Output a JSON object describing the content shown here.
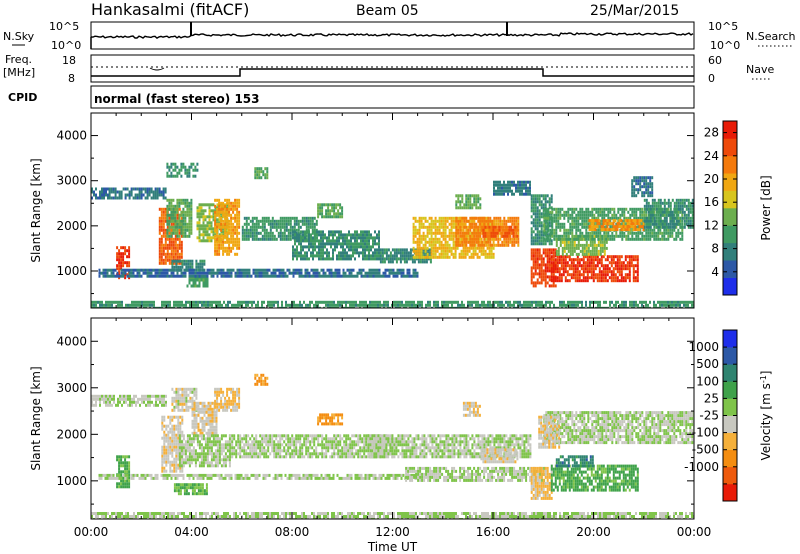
{
  "header": {
    "station": "Hankasalmi (fitACF)",
    "beam": "Beam 05",
    "date": "25/Mar/2015"
  },
  "nsky_panel": {
    "left_label": "N.Sky",
    "right_label": "N.Search",
    "left_ticks": [
      "10^5",
      "10^0"
    ],
    "right_ticks": [
      "10^5",
      "10^0"
    ]
  },
  "freq_panel": {
    "left_label_1": "Freq.",
    "left_label_2": "[MHz]",
    "left_ticks": [
      "18",
      "8"
    ],
    "right_label": "Nave",
    "right_ticks": [
      "60",
      "0"
    ]
  },
  "cpid": {
    "label": "CPID",
    "value": "normal (fast stereo) 153"
  },
  "chart_data": [
    {
      "type": "heatmap",
      "panel": "power",
      "xlabel": "Time UT",
      "ylabel": "Slant Range [km]",
      "xlim": [
        0,
        24
      ],
      "ylim": [
        180,
        4500
      ],
      "x_ticks": [
        "00:00",
        "04:00",
        "08:00",
        "12:00",
        "16:00",
        "20:00",
        "00:00"
      ],
      "y_ticks": [
        1000,
        2000,
        3000,
        4000
      ],
      "colorbar": {
        "label": "Power [dB]",
        "ticks": [
          4,
          8,
          12,
          16,
          20,
          24,
          28
        ],
        "range": [
          0,
          30
        ],
        "colors": [
          "#1e2eea",
          "#2c58a6",
          "#317f7b",
          "#3f9a62",
          "#6cae4e",
          "#d8c51e",
          "#f0a712",
          "#f47a0c",
          "#ee4a0a",
          "#e81b07"
        ]
      },
      "regions": [
        {
          "x0": 0.0,
          "x1": 0.7,
          "y0": 2600,
          "y1": 2850,
          "level": 6
        },
        {
          "x0": 0.7,
          "x1": 3.0,
          "y0": 2650,
          "y1": 2850,
          "level": 7
        },
        {
          "x0": 1.0,
          "x1": 1.5,
          "y0": 850,
          "y1": 1550,
          "level": 27
        },
        {
          "x0": 2.7,
          "x1": 3.6,
          "y0": 1200,
          "y1": 2400,
          "level": 24
        },
        {
          "x0": 3.0,
          "x1": 4.0,
          "y0": 1800,
          "y1": 2600,
          "level": 12
        },
        {
          "x0": 3.0,
          "x1": 4.2,
          "y0": 3100,
          "y1": 3400,
          "level": 9
        },
        {
          "x0": 4.2,
          "x1": 5.4,
          "y0": 1700,
          "y1": 2500,
          "level": 14
        },
        {
          "x0": 4.9,
          "x1": 5.9,
          "y0": 1400,
          "y1": 2600,
          "level": 20
        },
        {
          "x0": 3.2,
          "x1": 4.5,
          "y0": 1050,
          "y1": 1250,
          "level": 8
        },
        {
          "x0": 3.8,
          "x1": 4.6,
          "y0": 700,
          "y1": 900,
          "level": 11
        },
        {
          "x0": 6.0,
          "x1": 9.0,
          "y0": 1700,
          "y1": 2200,
          "level": 10
        },
        {
          "x0": 6.5,
          "x1": 7.0,
          "y0": 3050,
          "y1": 3300,
          "level": 12
        },
        {
          "x0": 0.3,
          "x1": 13.0,
          "y0": 900,
          "y1": 1050,
          "level": 6
        },
        {
          "x0": 8.0,
          "x1": 11.5,
          "y0": 1300,
          "y1": 1900,
          "level": 9
        },
        {
          "x0": 9.0,
          "x1": 10.0,
          "y0": 2200,
          "y1": 2500,
          "level": 12
        },
        {
          "x0": 11.5,
          "x1": 13.5,
          "y0": 1200,
          "y1": 1500,
          "level": 8
        },
        {
          "x0": 12.8,
          "x1": 16.0,
          "y0": 1300,
          "y1": 2200,
          "level": 18
        },
        {
          "x0": 14.5,
          "x1": 17.0,
          "y0": 1600,
          "y1": 2200,
          "level": 22
        },
        {
          "x0": 15.5,
          "x1": 17.0,
          "y0": 1800,
          "y1": 2000,
          "level": 24
        },
        {
          "x0": 14.5,
          "x1": 15.5,
          "y0": 2400,
          "y1": 2700,
          "level": 13
        },
        {
          "x0": 16.0,
          "x1": 17.5,
          "y0": 2700,
          "y1": 3000,
          "level": 7
        },
        {
          "x0": 17.5,
          "x1": 18.3,
          "y0": 1600,
          "y1": 2700,
          "level": 9
        },
        {
          "x0": 17.5,
          "x1": 18.5,
          "y0": 650,
          "y1": 1500,
          "level": 26
        },
        {
          "x0": 18.3,
          "x1": 21.8,
          "y0": 800,
          "y1": 1350,
          "level": 27
        },
        {
          "x0": 18.5,
          "x1": 20.5,
          "y0": 1400,
          "y1": 1800,
          "level": 14
        },
        {
          "x0": 18.0,
          "x1": 23.5,
          "y0": 1700,
          "y1": 2400,
          "level": 11
        },
        {
          "x0": 19.8,
          "x1": 22.0,
          "y0": 1900,
          "y1": 2150,
          "level": 21
        },
        {
          "x0": 22.0,
          "x1": 24.0,
          "y0": 2000,
          "y1": 2600,
          "level": 9
        },
        {
          "x0": 21.5,
          "x1": 22.3,
          "y0": 2700,
          "y1": 3100,
          "level": 7
        },
        {
          "x0": 0.0,
          "x1": 24.0,
          "y0": 180,
          "y1": 340,
          "level": 10
        }
      ]
    },
    {
      "type": "heatmap",
      "panel": "velocity",
      "xlabel": "Time UT",
      "ylabel": "Slant Range [km]",
      "xlim": [
        0,
        24
      ],
      "ylim": [
        180,
        4500
      ],
      "x_ticks": [
        "00:00",
        "04:00",
        "08:00",
        "12:00",
        "16:00",
        "20:00",
        "00:00"
      ],
      "y_ticks": [
        1000,
        2000,
        3000,
        4000
      ],
      "colorbar": {
        "label": "Velocity [m s^-1]",
        "ticks": [
          1000,
          500,
          100,
          25,
          -25,
          -100,
          -500,
          -1000
        ],
        "range": [
          -1200,
          1200
        ],
        "colors": [
          "#e81b07",
          "#ee5a0c",
          "#f48d10",
          "#f5b03a",
          "#c8c8c0",
          "#7fc44a",
          "#3fa24a",
          "#2f8470",
          "#2c58a6",
          "#1e2eea"
        ]
      },
      "regions": [
        {
          "x0": 0.0,
          "x1": 3.0,
          "y0": 2600,
          "y1": 2850,
          "level": 0
        },
        {
          "x0": 1.0,
          "x1": 1.5,
          "y0": 850,
          "y1": 1550,
          "level": 300
        },
        {
          "x0": 2.8,
          "x1": 3.6,
          "y0": 1200,
          "y1": 2400,
          "level": -150
        },
        {
          "x0": 3.2,
          "x1": 4.2,
          "y0": 2500,
          "y1": 3000,
          "level": -120
        },
        {
          "x0": 4.0,
          "x1": 5.0,
          "y0": 2000,
          "y1": 2700,
          "level": -200
        },
        {
          "x0": 4.9,
          "x1": 5.9,
          "y0": 2500,
          "y1": 3000,
          "level": -300
        },
        {
          "x0": 3.3,
          "x1": 4.6,
          "y0": 700,
          "y1": 950,
          "level": 200
        },
        {
          "x0": 3.5,
          "x1": 5.5,
          "y0": 1300,
          "y1": 2000,
          "level": 0
        },
        {
          "x0": 6.5,
          "x1": 7.0,
          "y0": 3050,
          "y1": 3300,
          "level": -500
        },
        {
          "x0": 5.5,
          "x1": 12.0,
          "y0": 1500,
          "y1": 2000,
          "level": 0
        },
        {
          "x0": 9.0,
          "x1": 10.0,
          "y0": 2200,
          "y1": 2450,
          "level": -500
        },
        {
          "x0": 0.3,
          "x1": 13.0,
          "y0": 1050,
          "y1": 1150,
          "level": 0
        },
        {
          "x0": 11.0,
          "x1": 17.5,
          "y0": 1500,
          "y1": 2000,
          "level": 0
        },
        {
          "x0": 12.5,
          "x1": 18.0,
          "y0": 1000,
          "y1": 1300,
          "level": 0
        },
        {
          "x0": 15.5,
          "x1": 17.0,
          "y0": 1400,
          "y1": 1700,
          "level": -150
        },
        {
          "x0": 14.8,
          "x1": 15.5,
          "y0": 2400,
          "y1": 2700,
          "level": -200
        },
        {
          "x0": 17.5,
          "x1": 18.3,
          "y0": 650,
          "y1": 1300,
          "level": -300
        },
        {
          "x0": 18.3,
          "x1": 21.8,
          "y0": 800,
          "y1": 1350,
          "level": 300
        },
        {
          "x0": 18.5,
          "x1": 20.0,
          "y0": 1350,
          "y1": 1550,
          "level": 600
        },
        {
          "x0": 18.0,
          "x1": 24.0,
          "y0": 1800,
          "y1": 2500,
          "level": 0
        },
        {
          "x0": 17.8,
          "x1": 18.6,
          "y0": 1700,
          "y1": 2400,
          "level": -200
        },
        {
          "x0": 0.0,
          "x1": 24.0,
          "y0": 180,
          "y1": 330,
          "level": 0
        }
      ]
    }
  ]
}
